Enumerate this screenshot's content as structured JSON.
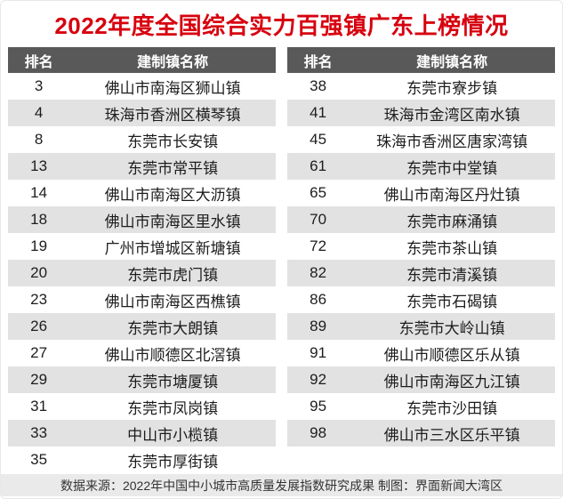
{
  "chart_data": {
    "type": "table",
    "title": "2022年度全国综合实力百强镇广东上榜情况",
    "tables": [
      {
        "headers": {
          "rank": "排名",
          "name": "建制镇名称"
        },
        "rows": [
          {
            "rank": "3",
            "name": "佛山市南海区狮山镇"
          },
          {
            "rank": "4",
            "name": "珠海市香洲区横琴镇"
          },
          {
            "rank": "8",
            "name": "东莞市长安镇"
          },
          {
            "rank": "13",
            "name": "东莞市常平镇"
          },
          {
            "rank": "14",
            "name": "佛山市南海区大沥镇"
          },
          {
            "rank": "18",
            "name": "佛山市南海区里水镇"
          },
          {
            "rank": "19",
            "name": "广州市增城区新塘镇"
          },
          {
            "rank": "20",
            "name": "东莞市虎门镇"
          },
          {
            "rank": "23",
            "name": "佛山市南海区西樵镇"
          },
          {
            "rank": "26",
            "name": "东莞市大朗镇"
          },
          {
            "rank": "27",
            "name": "佛山市顺德区北滘镇"
          },
          {
            "rank": "29",
            "name": "东莞市塘厦镇"
          },
          {
            "rank": "31",
            "name": "东莞市凤岗镇"
          },
          {
            "rank": "33",
            "name": "中山市小榄镇"
          },
          {
            "rank": "35",
            "name": "东莞市厚街镇"
          }
        ]
      },
      {
        "headers": {
          "rank": "排名",
          "name": "建制镇名称"
        },
        "rows": [
          {
            "rank": "38",
            "name": "东莞市寮步镇"
          },
          {
            "rank": "41",
            "name": "珠海市金湾区南水镇"
          },
          {
            "rank": "45",
            "name": "珠海市香洲区唐家湾镇"
          },
          {
            "rank": "61",
            "name": "东莞市中堂镇"
          },
          {
            "rank": "65",
            "name": "佛山市南海区丹灶镇"
          },
          {
            "rank": "70",
            "name": "东莞市麻涌镇"
          },
          {
            "rank": "72",
            "name": "东莞市茶山镇"
          },
          {
            "rank": "82",
            "name": "东莞市清溪镇"
          },
          {
            "rank": "86",
            "name": "东莞市石碣镇"
          },
          {
            "rank": "89",
            "name": "东莞市大岭山镇"
          },
          {
            "rank": "91",
            "name": "佛山市顺德区乐从镇"
          },
          {
            "rank": "92",
            "name": "佛山市南海区九江镇"
          },
          {
            "rank": "95",
            "name": "东莞市沙田镇"
          },
          {
            "rank": "98",
            "name": "佛山市三水区乐平镇"
          }
        ]
      }
    ],
    "footer": "数据来源：2022年中国中小城市高质量发展指数研究成果 制图：界面新闻大湾区"
  },
  "colors": {
    "title_red": "#d7000f",
    "header_bg": "#595959",
    "stripe_bg": "#e2e2e2",
    "footer_bg": "#eaeaea",
    "text_dark": "#1d1d1d"
  }
}
